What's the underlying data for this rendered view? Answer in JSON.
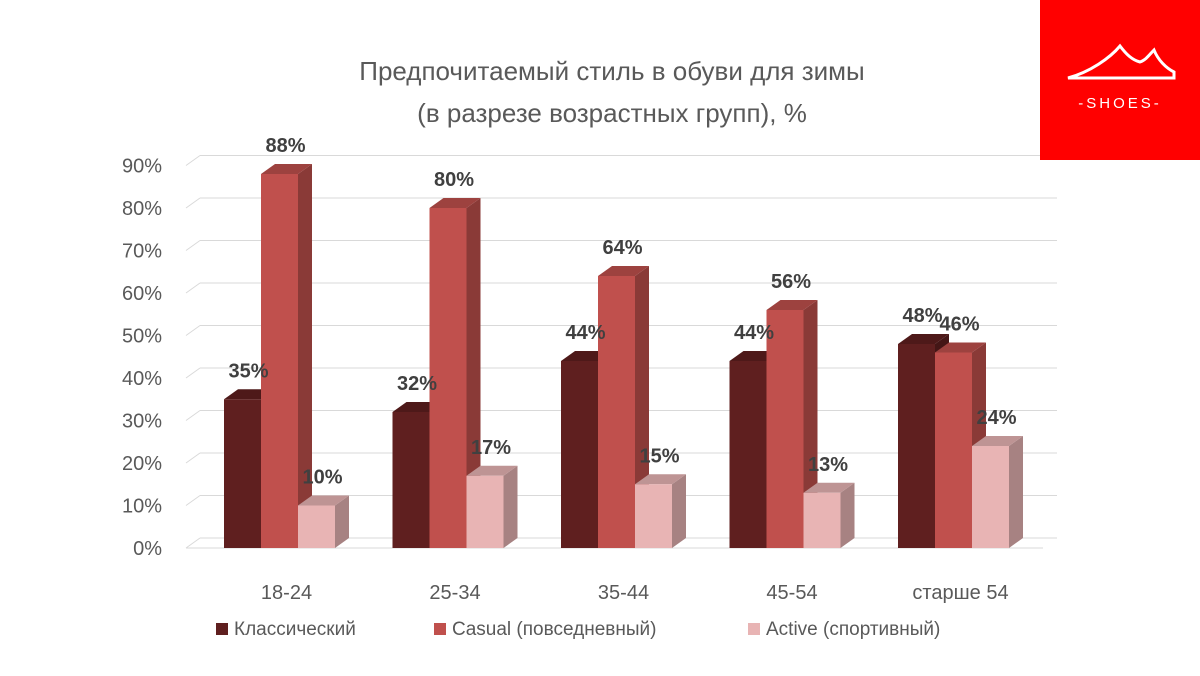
{
  "chart_data": {
    "type": "bar",
    "title_line1": "Предпочитаемый стиль в обуви для зимы",
    "title_line2": "(в разрезе возрастных групп), %",
    "categories": [
      "18-24",
      "25-34",
      "35-44",
      "45-54",
      "старше 54"
    ],
    "series": [
      {
        "name": "Классический",
        "values": [
          35,
          32,
          44,
          44,
          48
        ],
        "labels": [
          "35%",
          "32%",
          "44%",
          "44%",
          "48%"
        ]
      },
      {
        "name": "Casual (повседневный)",
        "values": [
          88,
          80,
          64,
          56,
          46
        ],
        "labels": [
          "88%",
          "80%",
          "64%",
          "56%",
          "46%"
        ]
      },
      {
        "name": "Active (спортивный)",
        "values": [
          10,
          17,
          15,
          13,
          24
        ],
        "labels": [
          "10%",
          "17%",
          "15%",
          "13%",
          "24%"
        ]
      }
    ],
    "yticks": [
      "0%",
      "10%",
      "20%",
      "30%",
      "40%",
      "50%",
      "60%",
      "70%",
      "80%",
      "90%"
    ],
    "ylim": [
      0,
      90
    ],
    "grid": true,
    "legend": "bottom",
    "colors": [
      "#5f1f1f",
      "#c0504d",
      "#e8b4b4"
    ]
  },
  "logo": {
    "text": "-SHOES-",
    "background": "#ff0000"
  }
}
